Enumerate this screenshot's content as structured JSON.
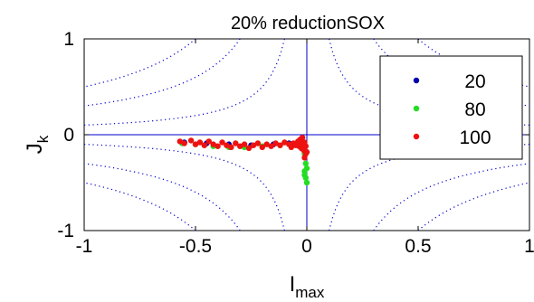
{
  "chart_data": {
    "type": "scatter",
    "title": "20% reductionSOX",
    "xlabel": {
      "base": "I",
      "subscript": "max"
    },
    "ylabel": {
      "base": "J",
      "subscript": "k"
    },
    "xlim": [
      -1,
      1
    ],
    "ylim": [
      -1,
      1
    ],
    "x_ticks": [
      "-1",
      "-0.5",
      "0",
      "0.5",
      "1"
    ],
    "y_ticks": [
      "-1",
      "0",
      "1"
    ],
    "x_tick_values": [
      -1,
      -0.5,
      0,
      0.5,
      1
    ],
    "y_tick_values": [
      -1,
      0,
      1
    ],
    "grid": false,
    "legend_position": "top-right",
    "reference_lines": {
      "x": 0,
      "y": 0,
      "color": "#0000cc"
    },
    "contours": {
      "style": "dotted",
      "color": "#0000cc",
      "levels": [
        0.1,
        0.3,
        0.5
      ]
    },
    "series": [
      {
        "name": "20",
        "color": "#0000aa",
        "points": [
          [
            -0.55,
            -0.08
          ],
          [
            -0.45,
            -0.09
          ],
          [
            -0.35,
            -0.1
          ],
          [
            -0.25,
            -0.11
          ],
          [
            -0.15,
            -0.1
          ],
          [
            -0.08,
            -0.09
          ],
          [
            -0.04,
            -0.08
          ],
          [
            -0.02,
            -0.09
          ]
        ]
      },
      {
        "name": "80",
        "color": "#22dd22",
        "points": [
          [
            -0.56,
            -0.09
          ],
          [
            -0.5,
            -0.1
          ],
          [
            -0.42,
            -0.12
          ],
          [
            -0.35,
            -0.13
          ],
          [
            -0.28,
            -0.13
          ],
          [
            -0.2,
            -0.12
          ],
          [
            -0.12,
            -0.11
          ],
          [
            -0.06,
            -0.1
          ],
          [
            -0.02,
            -0.12
          ],
          [
            -0.01,
            -0.2
          ],
          [
            -0.005,
            -0.3
          ],
          [
            -0.01,
            -0.38
          ],
          [
            -0.005,
            -0.45
          ],
          [
            0.0,
            -0.5
          ],
          [
            -0.01,
            -0.42
          ],
          [
            0.0,
            -0.35
          ]
        ]
      },
      {
        "name": "100",
        "color": "#ee1111",
        "points": [
          [
            -0.57,
            -0.07
          ],
          [
            -0.55,
            -0.09
          ],
          [
            -0.52,
            -0.06
          ],
          [
            -0.5,
            -0.1
          ],
          [
            -0.48,
            -0.08
          ],
          [
            -0.46,
            -0.11
          ],
          [
            -0.44,
            -0.07
          ],
          [
            -0.42,
            -0.1
          ],
          [
            -0.4,
            -0.12
          ],
          [
            -0.38,
            -0.08
          ],
          [
            -0.36,
            -0.11
          ],
          [
            -0.34,
            -0.13
          ],
          [
            -0.32,
            -0.09
          ],
          [
            -0.3,
            -0.12
          ],
          [
            -0.28,
            -0.1
          ],
          [
            -0.26,
            -0.14
          ],
          [
            -0.24,
            -0.11
          ],
          [
            -0.22,
            -0.09
          ],
          [
            -0.2,
            -0.13
          ],
          [
            -0.18,
            -0.1
          ],
          [
            -0.16,
            -0.12
          ],
          [
            -0.14,
            -0.09
          ],
          [
            -0.12,
            -0.11
          ],
          [
            -0.1,
            -0.08
          ],
          [
            -0.08,
            -0.1
          ],
          [
            -0.07,
            -0.13
          ],
          [
            -0.06,
            -0.09
          ],
          [
            -0.05,
            -0.11
          ],
          [
            -0.04,
            -0.07
          ],
          [
            -0.035,
            -0.12
          ],
          [
            -0.03,
            -0.05
          ],
          [
            -0.025,
            -0.14
          ],
          [
            -0.02,
            -0.03
          ],
          [
            -0.015,
            -0.16
          ],
          [
            -0.01,
            -0.08
          ],
          [
            -0.005,
            -0.2
          ],
          [
            -0.01,
            -0.24
          ],
          [
            -0.005,
            -0.12
          ],
          [
            0.0,
            -0.18
          ],
          [
            -0.02,
            -0.1
          ]
        ]
      }
    ]
  }
}
